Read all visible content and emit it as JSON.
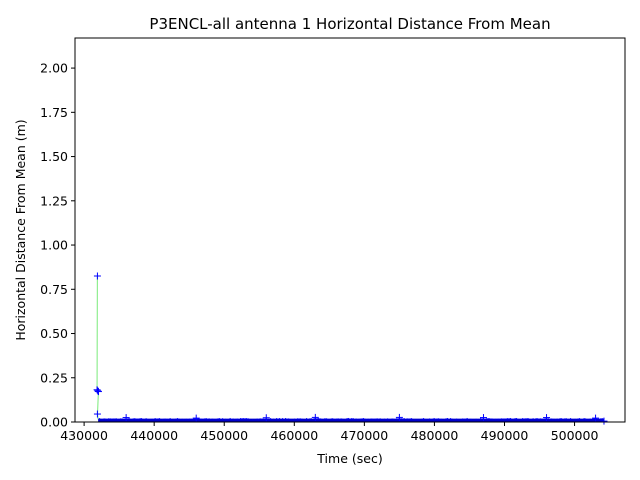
{
  "chart_data": {
    "type": "scatter",
    "title": "P3ENCL-all antenna 1 Horizontal Distance From Mean",
    "xlabel": "Time (sec)",
    "ylabel": "Horizontal Distance From Mean (m)",
    "xlim": [
      428700,
      507200
    ],
    "ylim": [
      0,
      2.17
    ],
    "xticks": [
      430000,
      440000,
      450000,
      460000,
      470000,
      480000,
      490000,
      500000
    ],
    "xtick_labels": [
      "430000",
      "440000",
      "450000",
      "460000",
      "470000",
      "480000",
      "490000",
      "500000"
    ],
    "yticks": [
      0.0,
      0.25,
      0.5,
      0.75,
      1.0,
      1.25,
      1.5,
      1.75,
      2.0
    ],
    "ytick_labels": [
      "0.00",
      "0.25",
      "0.50",
      "0.75",
      "1.00",
      "1.25",
      "1.50",
      "1.75",
      "2.00"
    ],
    "grid": false,
    "colors": {
      "markers": "#0000ff",
      "connector": "#90ee90",
      "dense_band": "#0000cc"
    },
    "marker": "+",
    "series": [
      {
        "points": [
          {
            "x": 431900,
            "y": 0.825
          },
          {
            "x": 431850,
            "y": 0.182
          },
          {
            "x": 431950,
            "y": 0.176
          },
          {
            "x": 432050,
            "y": 0.172
          },
          {
            "x": 431900,
            "y": 0.045
          },
          {
            "x": 436000,
            "y": 0.025
          },
          {
            "x": 446000,
            "y": 0.022
          },
          {
            "x": 456000,
            "y": 0.024
          },
          {
            "x": 463000,
            "y": 0.026
          },
          {
            "x": 475000,
            "y": 0.026
          },
          {
            "x": 487000,
            "y": 0.025
          },
          {
            "x": 496000,
            "y": 0.025
          },
          {
            "x": 503000,
            "y": 0.022
          },
          {
            "x": 504200,
            "y": 0.005
          }
        ],
        "dense_band": {
          "x_start": 432000,
          "x_end": 504200,
          "y_min": 0.0,
          "y_typical": 0.015,
          "y_max": 0.028
        }
      }
    ]
  }
}
